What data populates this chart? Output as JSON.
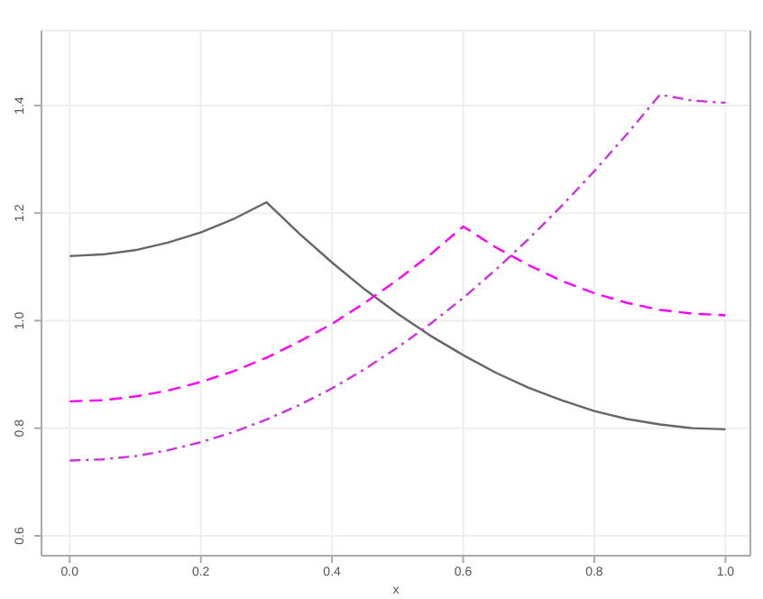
{
  "chart_data": {
    "type": "line",
    "xlabel": "x",
    "x": [
      0,
      0.05,
      0.1,
      0.15,
      0.2,
      0.25,
      0.3,
      0.35,
      0.4,
      0.45,
      0.5,
      0.55,
      0.6,
      0.65,
      0.7,
      0.75,
      0.8,
      0.85,
      0.9,
      0.95,
      1.0
    ],
    "series": [
      {
        "color": "#666666",
        "line_style": "solid",
        "values": [
          1.12,
          1.123,
          1.131,
          1.145,
          1.164,
          1.189,
          1.22,
          1.162,
          1.108,
          1.058,
          1.013,
          0.972,
          0.936,
          0.903,
          0.875,
          0.852,
          0.832,
          0.817,
          0.807,
          0.8,
          0.798
        ]
      },
      {
        "color": "#ff00ff",
        "line_style": "dashed",
        "values": [
          0.85,
          0.852,
          0.859,
          0.87,
          0.886,
          0.906,
          0.931,
          0.961,
          0.994,
          1.033,
          1.076,
          1.123,
          1.175,
          1.136,
          1.103,
          1.074,
          1.051,
          1.033,
          1.02,
          1.013,
          1.01
        ]
      },
      {
        "color": "#cc33dd",
        "line_style": "dashdot",
        "values": [
          0.74,
          0.742,
          0.748,
          0.759,
          0.774,
          0.793,
          0.816,
          0.843,
          0.874,
          0.91,
          0.95,
          0.994,
          1.042,
          1.095,
          1.152,
          1.213,
          1.278,
          1.347,
          1.42,
          1.409,
          1.405
        ]
      }
    ],
    "xlim": [
      -0.043,
      1.038
    ],
    "ylim": [
      0.563,
      1.539
    ],
    "xticks": [
      {
        "value": 0,
        "label": "0.0"
      },
      {
        "value": 0.2,
        "label": "0.2"
      },
      {
        "value": 0.4,
        "label": "0.4"
      },
      {
        "value": 0.6,
        "label": "0.6"
      },
      {
        "value": 0.8,
        "label": "0.8"
      },
      {
        "value": 1,
        "label": "1.0"
      }
    ],
    "yticks": [
      {
        "value": 0.6,
        "label": "0.6"
      },
      {
        "value": 0.8,
        "label": "0.8"
      },
      {
        "value": 1.0,
        "label": "1.0"
      },
      {
        "value": 1.2,
        "label": "1.2"
      },
      {
        "value": 1.4,
        "label": "1.4"
      }
    ],
    "grid": true,
    "marker": "none"
  }
}
